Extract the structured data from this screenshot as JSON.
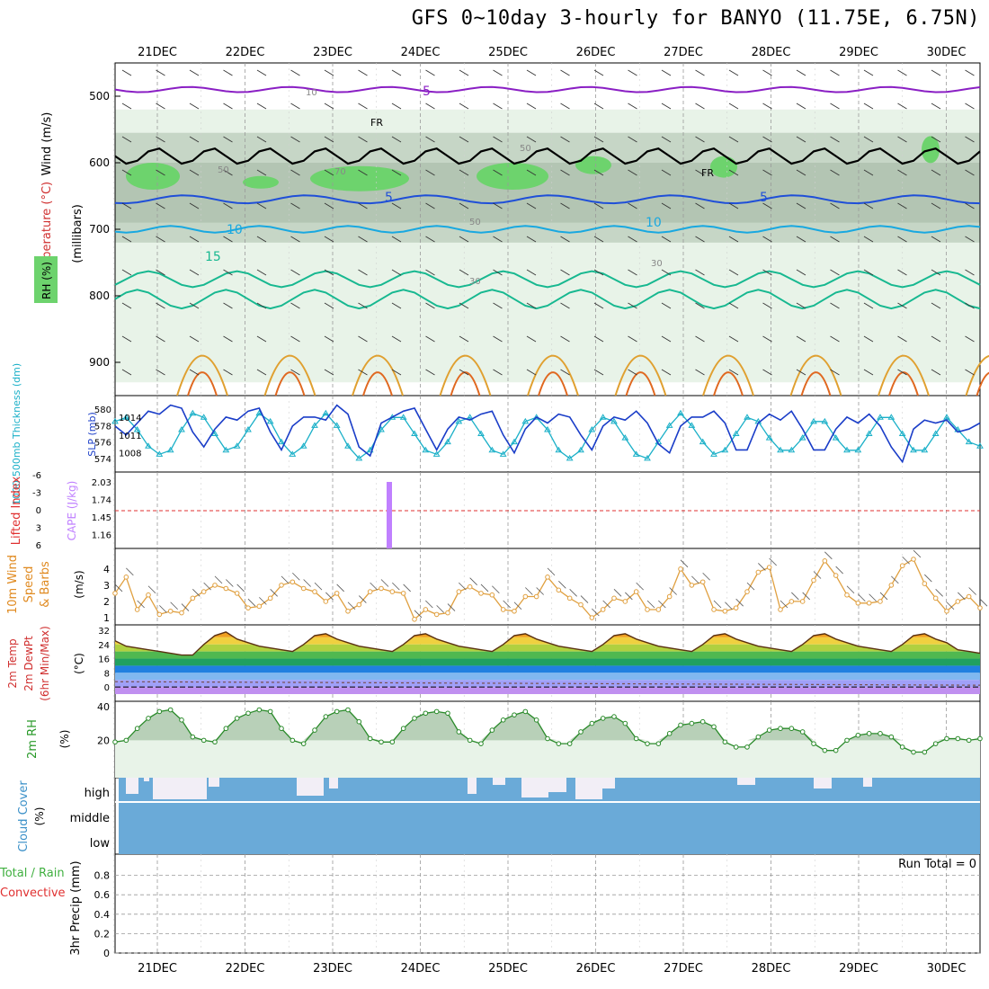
{
  "title": "GFS 0~10day 3-hourly for BANYO (11.75E, 6.75N)",
  "days": [
    "21DEC",
    "22DEC",
    "23DEC",
    "24DEC",
    "25DEC",
    "26DEC",
    "27DEC",
    "28DEC",
    "29DEC",
    "30DEC"
  ],
  "colors": {
    "grid": "#9a9a9a",
    "axis": "#000000",
    "temp_purple": "#8a1fc4",
    "temp_blue": "#1f4fd8",
    "temp_cyan": "#19a8e0",
    "temp_teal": "#17b890",
    "temp_orange": "#e0a030",
    "rh_light": "#e8f3e8",
    "rh_mid": "#c6d6c6",
    "rh_dark": "#b3c5b3",
    "rh_green": "#6dd36d",
    "slp": "#1a3dc8",
    "thick": "#1bb0c8",
    "cape": "#c080ff",
    "li": "#e03030",
    "wind10": "#e0a040",
    "cloud": "#6aaad8",
    "cloud_gap": "#f2eef6",
    "precip": "#40b040"
  },
  "panels": {
    "profile": {
      "ylabel_wind": "Wind (m/s)",
      "ylabel_temp": "Temperature (°C)",
      "ylabel_rh": "RH (%)",
      "ylabel_mb": "(millibars)",
      "levels": [
        "500",
        "600",
        "700",
        "800",
        "900"
      ],
      "labels_purple": "5",
      "labels_fr": "FR",
      "labels_blue": "5",
      "labels_cyan": "10",
      "labels_teal": "15",
      "labels_rh50": "50",
      "labels_rh30": "30",
      "labels_rh70": "70",
      "labels_rh10": "10"
    },
    "slp": {
      "ylabel_thick": "1000-500mb Thickness (dm)",
      "ylabel_slp": "SLP (mb)",
      "thick_ticks": [
        "580",
        "578",
        "576",
        "574"
      ],
      "slp_ticks": [
        "1014",
        "1011",
        "1008"
      ]
    },
    "cape": {
      "ylabel_li": "Lifted Index",
      "ylabel_cape": "CAPE (J/kg)",
      "li_ticks": [
        "-6",
        "-3",
        "0",
        "3",
        "6"
      ],
      "cape_ticks": [
        "2.03",
        "1.74",
        "1.45",
        "1.16"
      ]
    },
    "wind10": {
      "ylabel": [
        "10m Wind",
        "Speed",
        "& Barbs"
      ],
      "units": "(m/s)",
      "ticks": [
        "4",
        "3",
        "2",
        "1"
      ]
    },
    "temp2m": {
      "ylabel": [
        "2m Temp",
        "2m DewPt",
        "(6hr Min/Max)"
      ],
      "units": "(°C)",
      "ticks": [
        "32",
        "24",
        "16",
        "8",
        "0"
      ]
    },
    "rh2m": {
      "ylabel": "2m RH",
      "units": "(%)",
      "ticks": [
        "40",
        "20"
      ]
    },
    "cloud": {
      "ylabel": "Cloud Cover",
      "units": "(%)",
      "labels": [
        "high",
        "middle",
        "low"
      ]
    },
    "precip": {
      "ylabel": "3hr Precip (mm)",
      "ylabel_left": "Total / Rain",
      "ylabel_conv": "Convective",
      "run_total": "Run Total = 0",
      "ticks": [
        "0.8",
        "0.6",
        "0.4",
        "0.2",
        "0"
      ]
    }
  },
  "chart_data": {
    "type": "line",
    "title": "GFS 0~10day 3-hourly for BANYO (11.75E, 6.75N)",
    "x": [
      "20DEC12",
      "20DEC15",
      "20DEC18",
      "20DEC21",
      "21DEC00",
      "21DEC03",
      "21DEC06",
      "21DEC09",
      "21DEC12",
      "21DEC15",
      "21DEC18",
      "21DEC21",
      "22DEC00",
      "22DEC03",
      "22DEC06",
      "22DEC09",
      "22DEC12",
      "22DEC15",
      "22DEC18",
      "22DEC21",
      "23DEC00",
      "23DEC03",
      "23DEC06",
      "23DEC09",
      "23DEC12",
      "23DEC15",
      "23DEC18",
      "23DEC21",
      "24DEC00",
      "24DEC03",
      "24DEC06",
      "24DEC09",
      "24DEC12",
      "24DEC15",
      "24DEC18",
      "24DEC21",
      "25DEC00",
      "25DEC03",
      "25DEC06",
      "25DEC09",
      "25DEC12",
      "25DEC15",
      "25DEC18",
      "25DEC21",
      "26DEC00",
      "26DEC03",
      "26DEC06",
      "26DEC09",
      "26DEC12",
      "26DEC15",
      "26DEC18",
      "26DEC21",
      "27DEC00",
      "27DEC03",
      "27DEC06",
      "27DEC09",
      "27DEC12",
      "27DEC15",
      "27DEC18",
      "27DEC21",
      "28DEC00",
      "28DEC03",
      "28DEC06",
      "28DEC09",
      "28DEC12",
      "28DEC15",
      "28DEC18",
      "28DEC21",
      "29DEC00",
      "29DEC03",
      "29DEC06",
      "29DEC09",
      "29DEC12",
      "29DEC15",
      "29DEC18",
      "29DEC21",
      "30DEC00",
      "30DEC03",
      "30DEC06"
    ],
    "series": [
      {
        "name": "SLP (mb)",
        "values": [
          1012.5,
          1011.0,
          1013.0,
          1015.0,
          1014.5,
          1016.0,
          1015.5,
          1011.5,
          1009.0,
          1012.0,
          1014.0,
          1013.5,
          1015.0,
          1015.5,
          1011.5,
          1008.5,
          1012.5,
          1014.0,
          1014.0,
          1013.5,
          1016.0,
          1014.5,
          1009.0,
          1007.5,
          1013.0,
          1014.0,
          1015.0,
          1015.5,
          1012.0,
          1008.5,
          1012.0,
          1014.0,
          1013.5,
          1014.5,
          1015.0,
          1011.0,
          1008.0,
          1012.0,
          1014.0,
          1013.0,
          1014.5,
          1014.0,
          1011.0,
          1008.5,
          1012.5,
          1014.0,
          1013.5,
          1015.0,
          1013.0,
          1009.5,
          1008.0,
          1012.5,
          1014.0,
          1014.0,
          1015.0,
          1013.0,
          1008.5,
          1008.5,
          1013.0,
          1014.5,
          1013.5,
          1015.0,
          1012.0,
          1008.5,
          1008.5,
          1012.0,
          1014.0,
          1013.0,
          1014.5,
          1012.5,
          1009.0,
          1006.5,
          1012.0,
          1013.5,
          1013.0,
          1013.5,
          1011.5,
          1012.0,
          1013.0
        ]
      },
      {
        "name": "1000-500mb Thickness (dm)",
        "values": [
          578.5,
          579.0,
          577.5,
          575.5,
          574.5,
          575.0,
          577.5,
          579.5,
          579.0,
          577.0,
          575.0,
          575.5,
          577.5,
          579.5,
          578.5,
          576.0,
          574.5,
          575.5,
          578.0,
          579.5,
          578.0,
          575.5,
          574.0,
          575.0,
          577.5,
          579.0,
          579.0,
          577.0,
          575.0,
          574.5,
          576.0,
          578.5,
          579.0,
          577.0,
          575.0,
          574.5,
          576.0,
          578.5,
          579.0,
          577.5,
          575.0,
          574.0,
          575.0,
          577.5,
          579.0,
          578.5,
          576.5,
          574.5,
          574.0,
          576.0,
          578.0,
          579.5,
          578.0,
          576.0,
          574.5,
          575.0,
          577.0,
          579.0,
          578.5,
          576.5,
          575.0,
          575.0,
          576.5,
          578.5,
          578.5,
          576.5,
          575.0,
          575.0,
          577.0,
          579.0,
          579.0,
          577.0,
          575.0,
          575.0,
          577.0,
          579.0,
          577.5,
          576.0,
          575.5
        ]
      },
      {
        "name": "10m Wind Speed (m/s)",
        "values": [
          2.5,
          3.5,
          1.5,
          2.4,
          1.2,
          1.4,
          1.3,
          2.2,
          2.6,
          3.0,
          2.8,
          2.5,
          1.6,
          1.7,
          2.2,
          3.0,
          3.2,
          2.8,
          2.6,
          2.0,
          2.5,
          1.4,
          1.8,
          2.6,
          2.8,
          2.6,
          2.5,
          0.9,
          1.5,
          1.2,
          1.3,
          2.6,
          2.9,
          2.5,
          2.4,
          1.5,
          1.4,
          2.3,
          2.3,
          3.5,
          2.7,
          2.2,
          1.8,
          1.0,
          1.5,
          2.2,
          2.0,
          2.6,
          1.5,
          1.5,
          2.3,
          4.0,
          3.0,
          3.2,
          1.5,
          1.4,
          1.6,
          2.6,
          3.8,
          4.1,
          1.5,
          2.0,
          2.0,
          3.3,
          4.5,
          3.6,
          2.4,
          1.9,
          1.9,
          2.0,
          3.0,
          4.2,
          4.6,
          3.1,
          2.2,
          1.4,
          2.0,
          2.3,
          1.6
        ]
      },
      {
        "name": "2m RH (%)",
        "values": [
          19,
          20,
          27,
          33,
          37,
          38,
          32,
          22,
          20,
          19,
          27,
          33,
          36,
          38,
          37,
          27,
          20,
          18,
          26,
          34,
          37,
          38,
          31,
          21,
          19,
          19,
          27,
          33,
          36,
          37,
          36,
          25,
          20,
          18,
          26,
          32,
          35,
          37,
          32,
          21,
          18,
          18,
          25,
          30,
          33,
          34,
          30,
          21,
          18,
          18,
          24,
          29,
          30,
          31,
          28,
          19,
          16,
          16,
          22,
          26,
          27,
          27,
          25,
          18,
          14,
          14,
          20,
          23,
          24,
          24,
          22,
          16,
          13,
          13,
          18,
          21,
          21,
          20,
          21
        ]
      },
      {
        "name": "2m Temp (°C)",
        "values": [
          26,
          23,
          22,
          21,
          20,
          19,
          18,
          18,
          24,
          29,
          31,
          27,
          25,
          23,
          22,
          21,
          20,
          24,
          29,
          30,
          27,
          25,
          23,
          22,
          21,
          20,
          24,
          29,
          30,
          27,
          25,
          23,
          22,
          21,
          20,
          24,
          29,
          30,
          27,
          25,
          23,
          22,
          21,
          20,
          24,
          29,
          30,
          27,
          25,
          23,
          22,
          21,
          20,
          24,
          29,
          30,
          27,
          25,
          23,
          22,
          21,
          20,
          24,
          29,
          30,
          27,
          25,
          23,
          22,
          21,
          20,
          24,
          29,
          30,
          27,
          25,
          21,
          20,
          19
        ]
      }
    ],
    "xlabel": "",
    "ylabel": ""
  }
}
